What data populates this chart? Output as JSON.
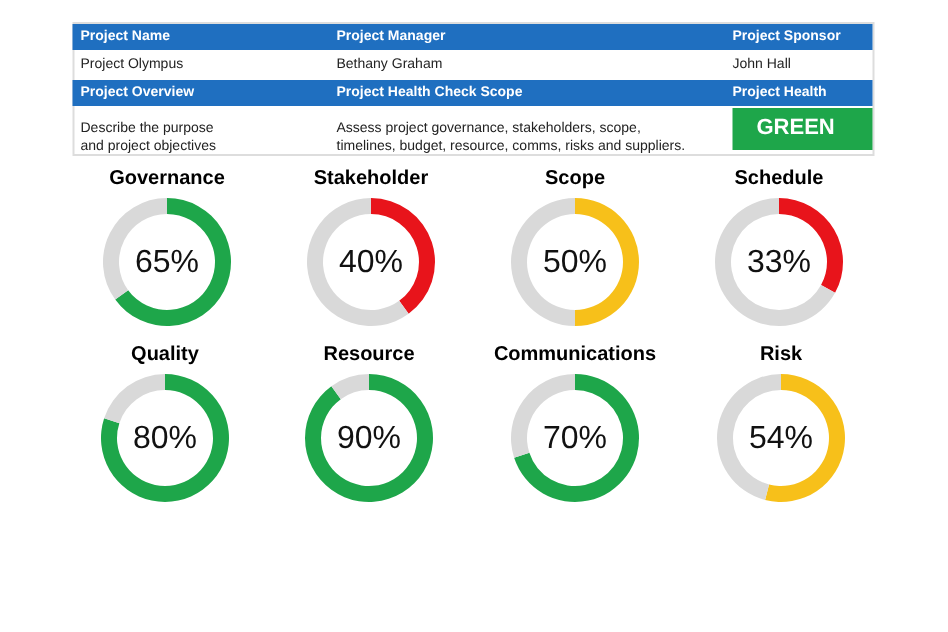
{
  "chart_data": [
    {
      "type": "other",
      "annotations": [
        "Project Name",
        "Project Manager",
        "Project Sponsor",
        "Project Olympus",
        "Bethany Graham",
        "John Hall",
        "Project Overview",
        "Project Health Check Scope",
        "Project Health",
        "Describe the purpose\nand project objectives",
        "Assess project governance, stakeholders,  scope,\ntimelines, budget, resource, comms, risks and suppliers.",
        "GREEN"
      ]
    },
    {
      "type": "donut",
      "title": "Governance",
      "categories": [
        null,
        null
      ],
      "values": [
        65,
        35
      ],
      "colors": [
        "#1ea64a",
        "#d9d9d9"
      ],
      "annotations": [
        "65%"
      ]
    },
    {
      "type": "donut",
      "title": "Stakeholder",
      "categories": [
        null,
        null
      ],
      "values": [
        40,
        60
      ],
      "colors": [
        "#e8141b",
        "#d9d9d9"
      ],
      "annotations": [
        "40%"
      ]
    },
    {
      "type": "donut",
      "title": "Scope",
      "categories": [
        null,
        null
      ],
      "values": [
        50,
        50
      ],
      "colors": [
        "#f7c01a",
        "#d9d9d9"
      ],
      "annotations": [
        "50%"
      ]
    },
    {
      "type": "donut",
      "title": "Schedule",
      "categories": [
        null,
        null
      ],
      "values": [
        33,
        67
      ],
      "colors": [
        "#e8141b",
        "#d9d9d9"
      ],
      "annotations": [
        "33%"
      ]
    },
    {
      "type": "donut",
      "title": "Quality",
      "categories": [
        null,
        null
      ],
      "values": [
        80,
        20
      ],
      "colors": [
        "#1ea64a",
        "#d9d9d9"
      ],
      "annotations": [
        "80%"
      ]
    },
    {
      "type": "donut",
      "title": "Resource",
      "categories": [
        null,
        null
      ],
      "values": [
        90,
        10
      ],
      "colors": [
        "#1ea64a",
        "#d9d9d9"
      ],
      "annotations": [
        "90%"
      ]
    },
    {
      "type": "donut",
      "title": "Communications",
      "categories": [
        null,
        null
      ],
      "values": [
        70,
        30
      ],
      "colors": [
        "#1ea64a",
        "#d9d9d9"
      ],
      "annotations": [
        "70%"
      ]
    },
    {
      "type": "donut",
      "title": "Risk",
      "categories": [
        null,
        null
      ],
      "values": [
        54,
        46
      ],
      "colors": [
        "#f7c01a",
        "#d9d9d9"
      ],
      "annotations": [
        "54%"
      ]
    }
  ]
}
